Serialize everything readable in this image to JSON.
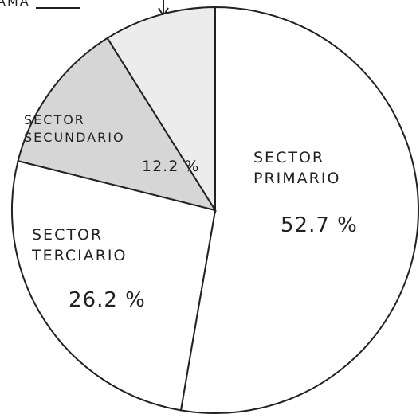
{
  "chart_data": {
    "type": "pie",
    "annotation": "AMA",
    "categories": [
      "SECTOR PRIMARIO",
      "SECTOR TERCIARIO",
      "SECTOR SECUNDARIO",
      null
    ],
    "values": [
      52.7,
      26.2,
      12.2,
      8.9
    ],
    "value_labels": [
      "52.7 %",
      "26.2 %",
      "12.2 %",
      null
    ],
    "colors": [
      "#ffffff",
      "#ffffff",
      "#d6d6d6",
      "#ececec"
    ]
  }
}
